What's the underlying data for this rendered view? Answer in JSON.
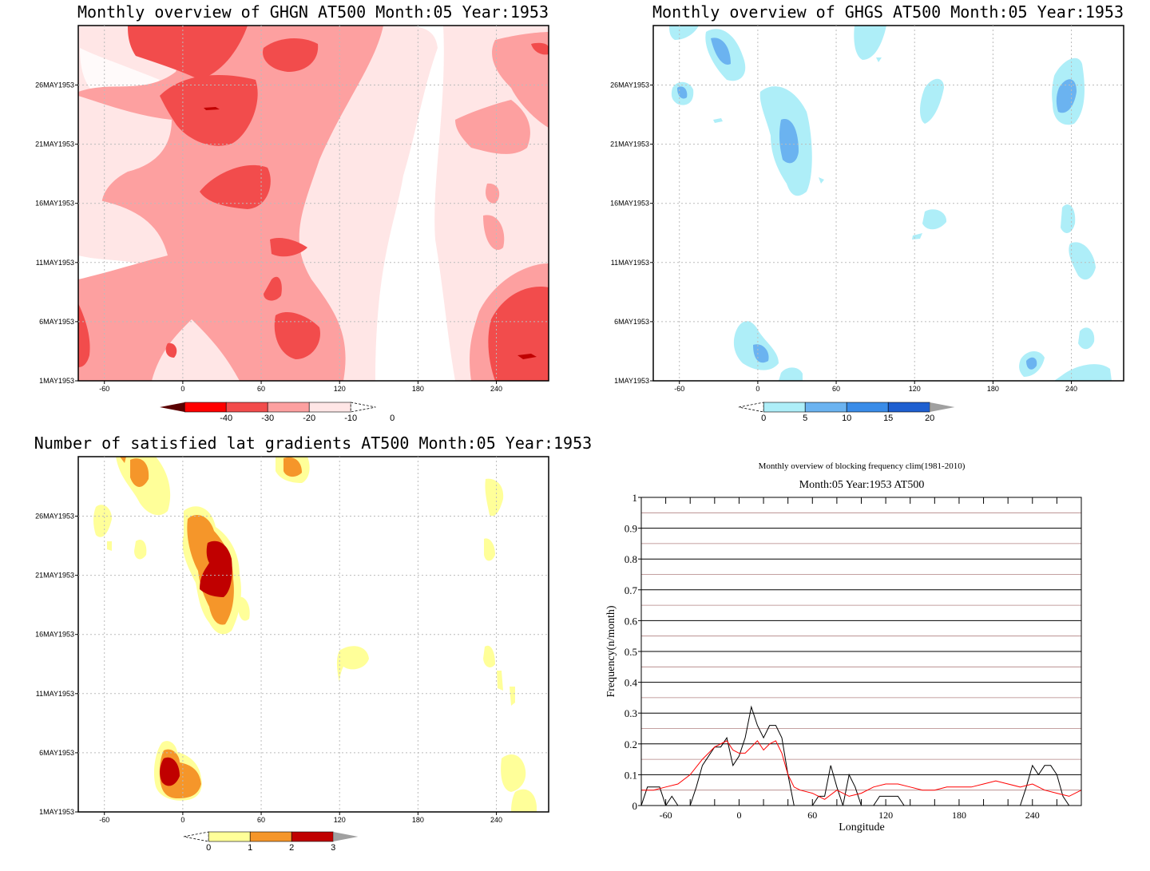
{
  "chart_data": [
    {
      "type": "heatmap",
      "title": "Monthly overview of GHGN AT500 Month:05 Year:1953",
      "x_ticks": [
        -60,
        0,
        60,
        120,
        180,
        240
      ],
      "y_ticks": [
        "1MAY1953",
        "6MAY1953",
        "11MAY1953",
        "16MAY1953",
        "21MAY1953",
        "26MAY1953"
      ],
      "xlim": [
        -80,
        280
      ],
      "colorbar": {
        "labels": [
          "-40",
          "-30",
          "-20",
          "-10",
          "0"
        ],
        "colors": [
          "#5a0000",
          "#ff0000",
          "#f24c4c",
          "#fda0a0",
          "#ffe6e6",
          "#ffffff"
        ]
      }
    },
    {
      "type": "heatmap",
      "title": "Monthly overview of GHGS AT500 Month:05 Year:1953",
      "x_ticks": [
        -60,
        0,
        60,
        120,
        180,
        240
      ],
      "y_ticks": [
        "1MAY1953",
        "6MAY1953",
        "11MAY1953",
        "16MAY1953",
        "21MAY1953",
        "26MAY1953"
      ],
      "xlim": [
        -80,
        280
      ],
      "colorbar": {
        "labels": [
          "0",
          "5",
          "10",
          "15",
          "20"
        ],
        "colors": [
          "#ffffff",
          "#aeeef8",
          "#6bb3f0",
          "#3a8ce8",
          "#1e5fd0",
          "#a0a0a0"
        ]
      }
    },
    {
      "type": "heatmap",
      "title": "Number of satisfied lat gradients AT500 Month:05 Year:1953",
      "x_ticks": [
        -60,
        0,
        60,
        120,
        180,
        240
      ],
      "y_ticks": [
        "1MAY1953",
        "6MAY1953",
        "11MAY1953",
        "16MAY1953",
        "21MAY1953",
        "26MAY1953"
      ],
      "xlim": [
        -80,
        280
      ],
      "colorbar": {
        "labels": [
          "0",
          "1",
          "2",
          "3"
        ],
        "colors": [
          "#ffffff",
          "#ffff99",
          "#f5962a",
          "#c00000",
          "#a0a0a0"
        ]
      }
    },
    {
      "type": "line",
      "title": "Monthly overview of blocking frequency clim(1981-2010)",
      "subtitle": "Month:05 Year:1953  AT500",
      "xlabel": "Longitude",
      "ylabel": "Frequency(n/month)",
      "xlim": [
        -80,
        280
      ],
      "ylim": [
        0,
        1
      ],
      "x_ticks": [
        -60,
        0,
        60,
        120,
        180,
        240
      ],
      "y_ticks": [
        "0",
        "0.1",
        "0.2",
        "0.3",
        "0.4",
        "0.5",
        "0.6",
        "0.7",
        "0.8",
        "0.9",
        "1"
      ],
      "grid": true,
      "series": [
        {
          "color": "#000000",
          "x": [
            -80,
            -75,
            -70,
            -65,
            -60,
            -55,
            -50,
            -45,
            -40,
            -35,
            -30,
            -25,
            -20,
            -15,
            -10,
            -5,
            0,
            5,
            10,
            15,
            20,
            25,
            30,
            35,
            40,
            45,
            50,
            55,
            60,
            65,
            70,
            75,
            80,
            85,
            90,
            95,
            100,
            105,
            110,
            115,
            120,
            125,
            130,
            135,
            140,
            145,
            150,
            160,
            170,
            180,
            190,
            200,
            210,
            220,
            230,
            235,
            240,
            245,
            250,
            255,
            260,
            265,
            270,
            275,
            280
          ],
          "y": [
            0,
            0.06,
            0.06,
            0.06,
            0,
            0.03,
            0,
            0,
            0,
            0.06,
            0.13,
            0.16,
            0.19,
            0.19,
            0.22,
            0.13,
            0.16,
            0.22,
            0.32,
            0.26,
            0.22,
            0.26,
            0.26,
            0.22,
            0.1,
            0,
            0,
            0,
            0,
            0.03,
            0.03,
            0.13,
            0.06,
            0,
            0.1,
            0.06,
            0,
            0,
            0,
            0.03,
            0.03,
            0.03,
            0.03,
            0,
            0,
            0,
            0,
            0,
            0,
            0,
            0,
            0,
            0,
            0,
            0,
            0.06,
            0.13,
            0.1,
            0.13,
            0.13,
            0.1,
            0.03,
            0,
            0,
            0
          ]
        },
        {
          "color": "#ff0000",
          "x": [
            -80,
            -70,
            -60,
            -50,
            -40,
            -30,
            -20,
            -10,
            -5,
            0,
            5,
            10,
            15,
            20,
            25,
            30,
            35,
            40,
            45,
            50,
            60,
            70,
            80,
            90,
            100,
            110,
            120,
            130,
            140,
            150,
            160,
            170,
            180,
            190,
            200,
            210,
            220,
            230,
            240,
            250,
            260,
            270,
            280
          ],
          "y": [
            0.05,
            0.05,
            0.06,
            0.07,
            0.1,
            0.15,
            0.19,
            0.21,
            0.18,
            0.17,
            0.17,
            0.19,
            0.21,
            0.18,
            0.2,
            0.21,
            0.17,
            0.1,
            0.06,
            0.05,
            0.04,
            0.02,
            0.05,
            0.03,
            0.04,
            0.06,
            0.07,
            0.07,
            0.06,
            0.05,
            0.05,
            0.06,
            0.06,
            0.06,
            0.07,
            0.08,
            0.07,
            0.06,
            0.07,
            0.05,
            0.04,
            0.03,
            0.05
          ]
        }
      ]
    }
  ]
}
